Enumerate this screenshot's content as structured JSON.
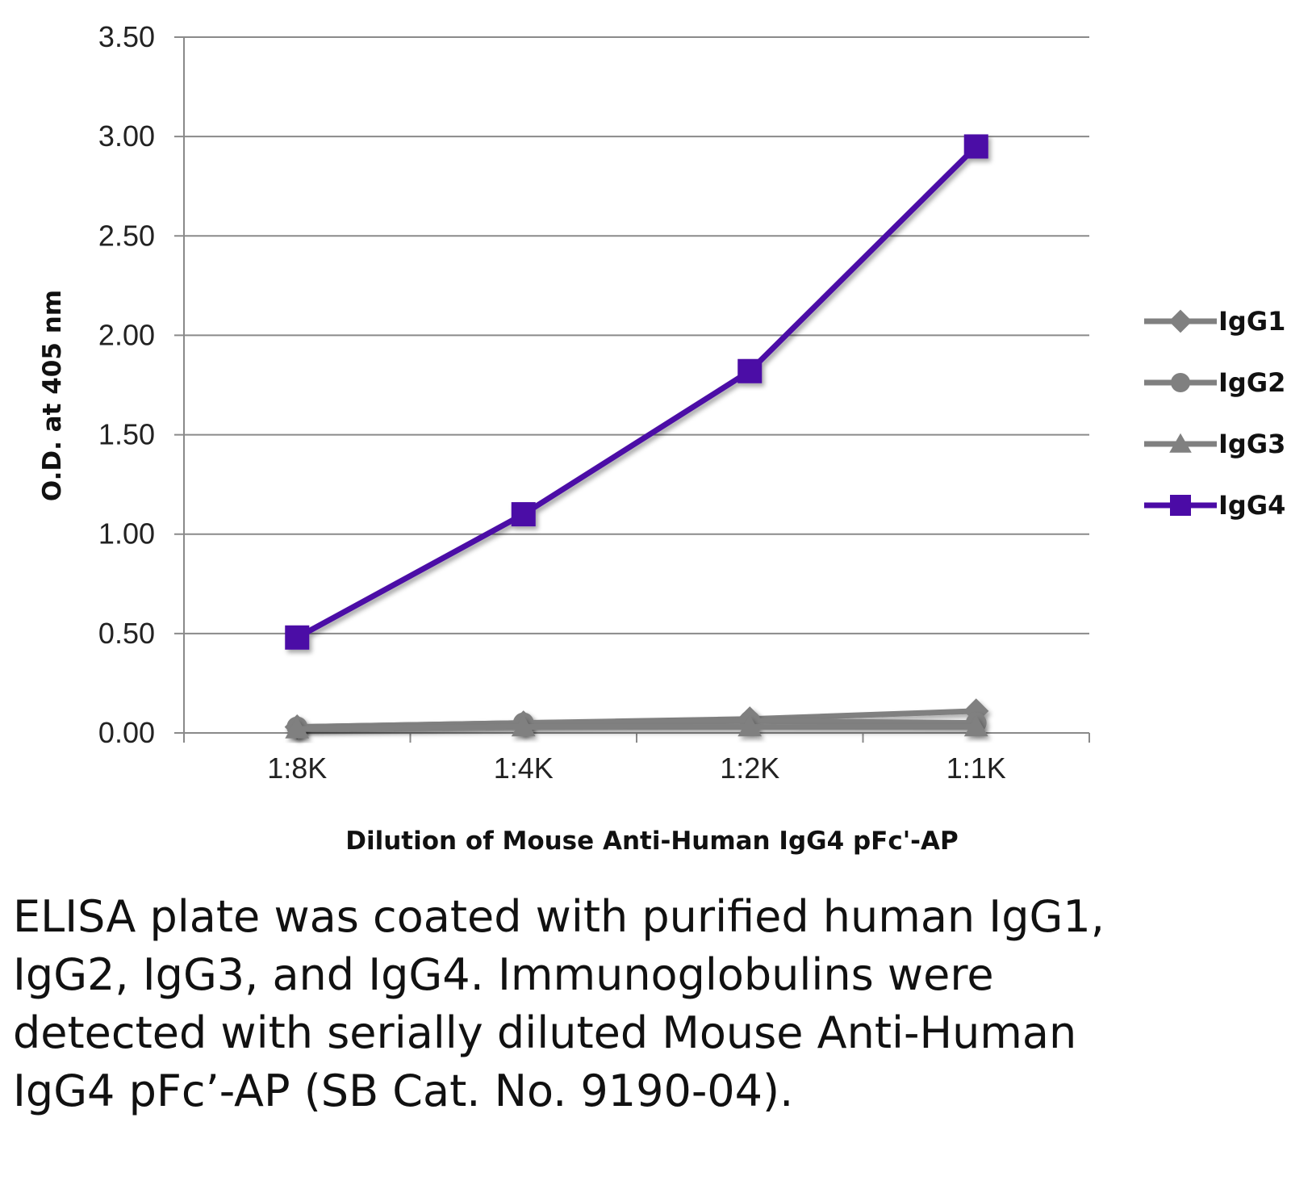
{
  "chart_data": {
    "type": "line",
    "title": "",
    "xlabel": "Dilution of Mouse Anti-Human IgG4 pFc'-AP",
    "ylabel": "O.D. at 405 nm",
    "categories": [
      "1:8K",
      "1:4K",
      "1:2K",
      "1:1K"
    ],
    "ylim": [
      0,
      3.5
    ],
    "yticks": [
      "0.00",
      "0.50",
      "1.00",
      "1.50",
      "2.00",
      "2.50",
      "3.00",
      "3.50"
    ],
    "grid": true,
    "legend_position": "right",
    "series": [
      {
        "name": "IgG1",
        "marker": "diamond",
        "color": "#808080",
        "values": [
          0.03,
          0.05,
          0.07,
          0.11
        ]
      },
      {
        "name": "IgG2",
        "marker": "circle",
        "color": "#808080",
        "values": [
          0.03,
          0.05,
          0.06,
          0.05
        ]
      },
      {
        "name": "IgG3",
        "marker": "triangle",
        "color": "#808080",
        "values": [
          0.02,
          0.03,
          0.03,
          0.03
        ]
      },
      {
        "name": "IgG4",
        "marker": "square",
        "color": "#4b0ba6",
        "values": [
          0.48,
          1.1,
          1.82,
          2.95
        ]
      }
    ]
  },
  "caption": "ELISA plate was coated with purified human IgG1, IgG2, IgG3, and IgG4.  Immunoglobulins were detected with serially diluted Mouse Anti-Human IgG4 pFc’-AP (SB Cat. No. 9190-04)."
}
